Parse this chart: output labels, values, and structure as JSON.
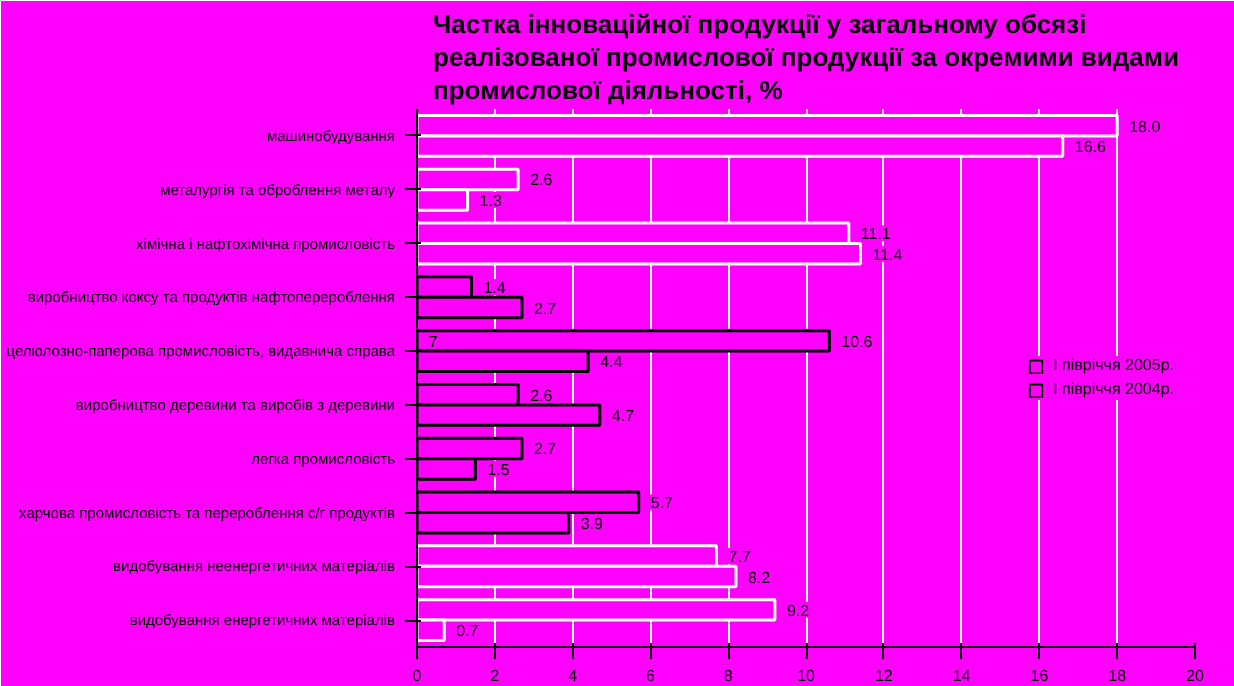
{
  "chart_data": {
    "type": "bar",
    "orientation": "horizontal",
    "title": "Частка інноваційної продукції у загальному обсязі\nреалізованої промислової продукції за окремими видами\nпромислової діяльності, %",
    "categories": [
      "машинобудування",
      "металургія та оброблення металу",
      "хімічна і нафтохімічна промисловість",
      "виробництво коксу та продуктів нафтоперероблення",
      "целюлозно-паперова промисловість, видавнича справа",
      "виробництво деревини та виробів з деревини",
      "легка промисловість",
      "харчова промисловість та перероблення с/г продуктів",
      "видобування неенергетичних матеріалів",
      "видобування енергетичних матеріалів"
    ],
    "series": [
      {
        "name": "І півріччя 2005р.",
        "color": "#000000",
        "colors": [
          "#ffffff",
          "#ffffff",
          "#ffffff",
          "#000000",
          "#000000",
          "#000000",
          "#000000",
          "#000000",
          "#ffffff",
          "#ffffff"
        ],
        "values": [
          18.0,
          2.6,
          11.1,
          1.4,
          10.6,
          2.6,
          2.7,
          5.7,
          7.7,
          9.2
        ],
        "value_labels": [
          "18.0",
          "2.6",
          "11.1",
          "1.4",
          "10.6",
          "2.6",
          "2.7",
          "5.7",
          "7.7",
          "9.2"
        ]
      },
      {
        "name": "І півріччя 2004р.",
        "color": "#000000",
        "colors": [
          "#ffffff",
          "#ffffff",
          "#ffffff",
          "#000000",
          "#000000",
          "#000000",
          "#000000",
          "#000000",
          "#ffffff",
          "#ffffff"
        ],
        "values": [
          16.6,
          1.3,
          11.4,
          2.7,
          4.4,
          4.7,
          1.5,
          3.9,
          8.2,
          0.7
        ],
        "value_labels": [
          "16.6",
          "1.3",
          "11.4",
          "2.7",
          "4.4",
          "4.7",
          "1.5",
          "3.9",
          "8.2",
          "0.7"
        ]
      }
    ],
    "xlim": [
      0,
      20
    ],
    "xticks": [
      0,
      2,
      4,
      6,
      8,
      10,
      12,
      14,
      16,
      18,
      20
    ],
    "grid": "x",
    "legend": "right",
    "annotations": [
      {
        "text": "7",
        "x": 0.3,
        "y": "целюлозно-паперова промисловість, видавнича справа"
      }
    ]
  }
}
